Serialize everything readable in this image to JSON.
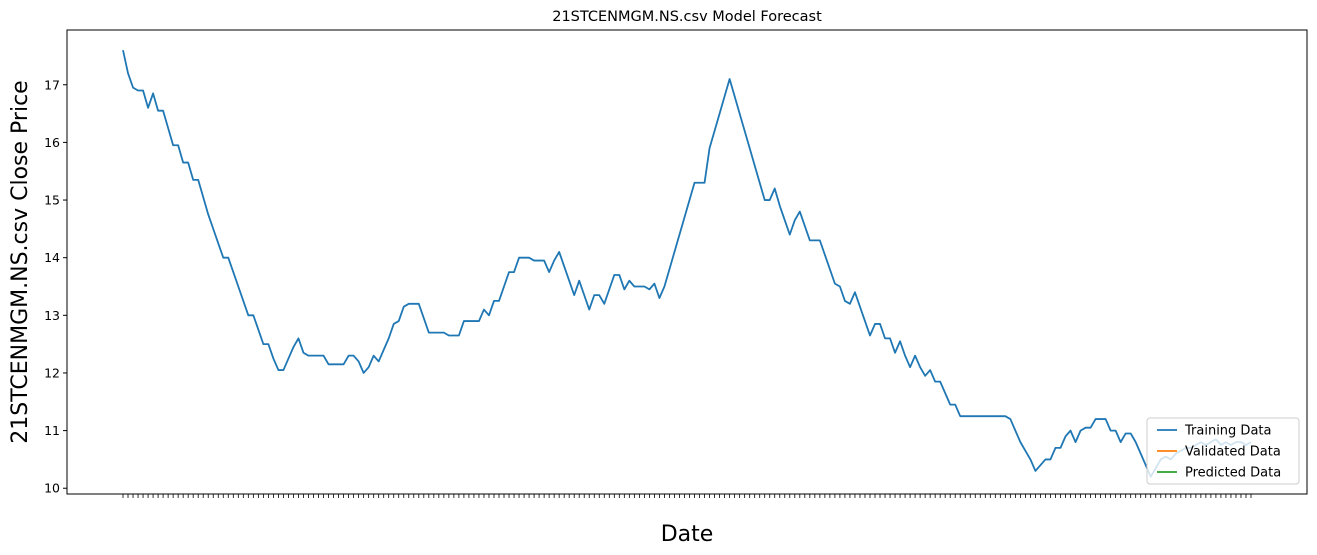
{
  "chart_data": {
    "type": "line",
    "title": "21STCENMGM.NS.csv Model Forecast",
    "xlabel": "Date",
    "ylabel": "21STCENMGM.NS.csv Close Price",
    "ylim": [
      9.9,
      17.95
    ],
    "yticks": [
      10,
      11,
      12,
      13,
      14,
      15,
      16,
      17
    ],
    "grid": false,
    "legend_position": "lower-right",
    "xtick_labels_note": "",
    "series": [
      {
        "name": "Training Data",
        "color": "#1f77b4",
        "values": [
          17.6,
          17.2,
          16.95,
          16.9,
          16.9,
          16.6,
          16.85,
          16.55,
          16.55,
          16.25,
          15.95,
          15.95,
          15.65,
          15.65,
          15.35,
          15.35,
          15.05,
          14.75,
          14.5,
          14.25,
          14.0,
          14.0,
          13.75,
          13.5,
          13.25,
          13.0,
          13.0,
          12.75,
          12.5,
          12.5,
          12.25,
          12.05,
          12.05,
          12.25,
          12.45,
          12.6,
          12.35,
          12.3,
          12.3,
          12.3,
          12.3,
          12.15,
          12.15,
          12.15,
          12.15,
          12.3,
          12.3,
          12.2,
          12.0,
          12.1,
          12.3,
          12.2,
          12.4,
          12.6,
          12.85,
          12.9,
          13.15,
          13.2,
          13.2,
          13.2,
          12.95,
          12.7,
          12.7,
          12.7,
          12.7,
          12.65,
          12.65,
          12.65,
          12.9,
          12.9,
          12.9,
          12.9,
          13.1,
          13.0,
          13.25,
          13.25,
          13.5,
          13.75,
          13.75,
          14.0,
          14.0,
          14.0,
          13.95,
          13.95,
          13.95,
          13.75,
          13.95,
          14.1,
          13.85,
          13.6,
          13.35,
          13.6,
          13.35,
          13.1,
          13.35,
          13.35,
          13.2,
          13.45,
          13.7,
          13.7,
          13.45,
          13.6,
          13.5,
          13.5,
          13.5,
          13.45,
          13.55,
          13.3,
          13.5,
          13.8,
          14.1,
          14.4,
          14.7,
          15.0,
          15.3,
          15.3,
          15.3,
          15.9,
          16.2,
          16.5,
          16.8,
          17.1,
          16.8,
          16.5,
          16.2,
          15.9,
          15.6,
          15.3,
          15.0,
          15.0,
          15.2,
          14.9,
          14.65,
          14.4,
          14.65,
          14.8,
          14.55,
          14.3,
          14.3,
          14.3,
          14.05,
          13.8,
          13.55,
          13.5,
          13.25,
          13.2,
          13.4,
          13.15,
          12.9,
          12.65,
          12.85,
          12.85,
          12.6,
          12.6,
          12.35,
          12.55,
          12.3,
          12.1,
          12.3,
          12.1,
          11.95,
          12.05,
          11.85,
          11.85,
          11.65,
          11.45,
          11.45,
          11.25,
          11.25,
          11.25,
          11.25,
          11.25,
          11.25,
          11.25,
          11.25,
          11.25,
          11.25,
          11.2,
          11.0,
          10.8,
          10.65,
          10.5,
          10.3,
          10.4,
          10.5,
          10.5,
          10.7,
          10.7,
          10.9,
          11.0,
          10.8,
          11.0,
          11.05,
          11.05,
          11.2,
          11.2,
          11.2,
          11.0,
          11.0,
          10.8,
          10.95,
          10.95,
          10.8,
          10.6,
          10.4,
          10.2,
          10.35,
          10.5,
          10.55,
          10.5,
          10.6,
          10.65,
          10.7,
          10.7,
          10.75,
          10.8,
          10.75,
          10.8,
          10.85,
          10.75,
          10.8,
          10.75,
          10.8,
          10.8,
          10.75,
          10.8
        ]
      },
      {
        "name": "Validated Data",
        "color": "#ff7f0e",
        "values": []
      },
      {
        "name": "Predicted Data",
        "color": "#2ca02c",
        "values": []
      }
    ]
  }
}
